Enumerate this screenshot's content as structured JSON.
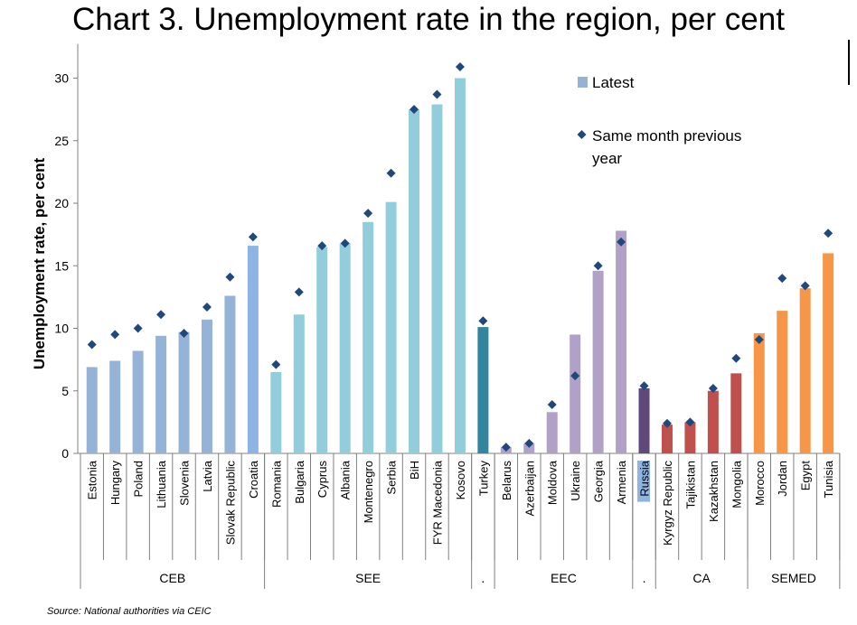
{
  "chart_data": {
    "type": "bar",
    "title": "Chart 3. Unemployment rate in the region, per cent",
    "ylabel": "Unemployment rate, per cent",
    "xlabel": "",
    "ylim": [
      0,
      32
    ],
    "yticks": [
      0,
      5,
      10,
      15,
      20,
      25,
      30
    ],
    "legend": {
      "position": "top-right",
      "latest_label": "Latest",
      "previous_label_line1": "Same month previous",
      "previous_label_line2": "year"
    },
    "groups": [
      {
        "label": "CEB",
        "start": 0,
        "end": 7
      },
      {
        "label": "SEE",
        "start": 8,
        "end": 16
      },
      {
        "label": ".",
        "start": 17,
        "end": 17
      },
      {
        "label": "EEC",
        "start": 18,
        "end": 23
      },
      {
        "label": ".",
        "start": 24,
        "end": 24
      },
      {
        "label": "CA",
        "start": 25,
        "end": 28
      },
      {
        "label": "SEMED",
        "start": 29,
        "end": 32
      }
    ],
    "categories": [
      "Estonia",
      "Hungary",
      "Poland",
      "Lithuania",
      "Slovenia",
      "Latvia",
      "Slovak Republic",
      "Croatia",
      "Romania",
      "Bulgaria",
      "Cyprus",
      "Albania",
      "Montenegro",
      "Serbia",
      "BiH",
      "FYR Macedonia",
      "Kosovo",
      "Turkey",
      "Belarus",
      "Azerbaijan",
      "Moldova",
      "Ukraine",
      "Georgia",
      "Armenia",
      "Russia",
      "Kyrgyz Republic",
      "Tajikistan",
      "Kazakhstan",
      "Mongolia",
      "Morocco",
      "Jordan",
      "Egypt",
      "Tunisia"
    ],
    "series": [
      {
        "name": "Latest",
        "kind": "bar",
        "values": [
          6.9,
          7.4,
          8.2,
          9.4,
          9.7,
          10.7,
          12.6,
          16.6,
          6.5,
          11.1,
          16.5,
          16.8,
          18.5,
          20.1,
          27.5,
          27.9,
          30.0,
          10.1,
          0.5,
          0.8,
          3.3,
          9.5,
          14.6,
          17.8,
          5.2,
          2.3,
          2.5,
          5.0,
          6.4,
          9.6,
          11.4,
          13.2,
          16.0
        ],
        "colors": [
          "#95b3d7",
          "#95b3d7",
          "#95b3d7",
          "#95b3d7",
          "#95b3d7",
          "#95b3d7",
          "#95b3d7",
          "#8db4e2",
          "#92cddc",
          "#92cddc",
          "#92cddc",
          "#92cddc",
          "#92cddc",
          "#92cddc",
          "#92cddc",
          "#92cddc",
          "#92cddc",
          "#31859c",
          "#b2a1c7",
          "#b2a1c7",
          "#b2a1c7",
          "#b2a1c7",
          "#b2a1c7",
          "#b2a1c7",
          "#5f497a",
          "#c0504d",
          "#c0504d",
          "#c0504d",
          "#c0504d",
          "#f79646",
          "#f79646",
          "#f79646",
          "#f79646"
        ]
      },
      {
        "name": "Same month previous year",
        "kind": "marker",
        "color": "#1f497d",
        "values": [
          8.7,
          9.5,
          10.0,
          11.1,
          9.6,
          11.7,
          14.1,
          17.3,
          7.1,
          12.9,
          16.6,
          16.8,
          19.2,
          22.4,
          27.5,
          28.7,
          30.9,
          10.6,
          0.5,
          0.8,
          3.9,
          6.2,
          15.0,
          16.9,
          5.4,
          2.4,
          2.5,
          5.2,
          7.6,
          9.1,
          14.0,
          13.4,
          17.6
        ]
      }
    ],
    "highlight_label_color": "#8db4e2",
    "highlight_label_index": 24
  },
  "source": "Source: National authorities via CEIC"
}
